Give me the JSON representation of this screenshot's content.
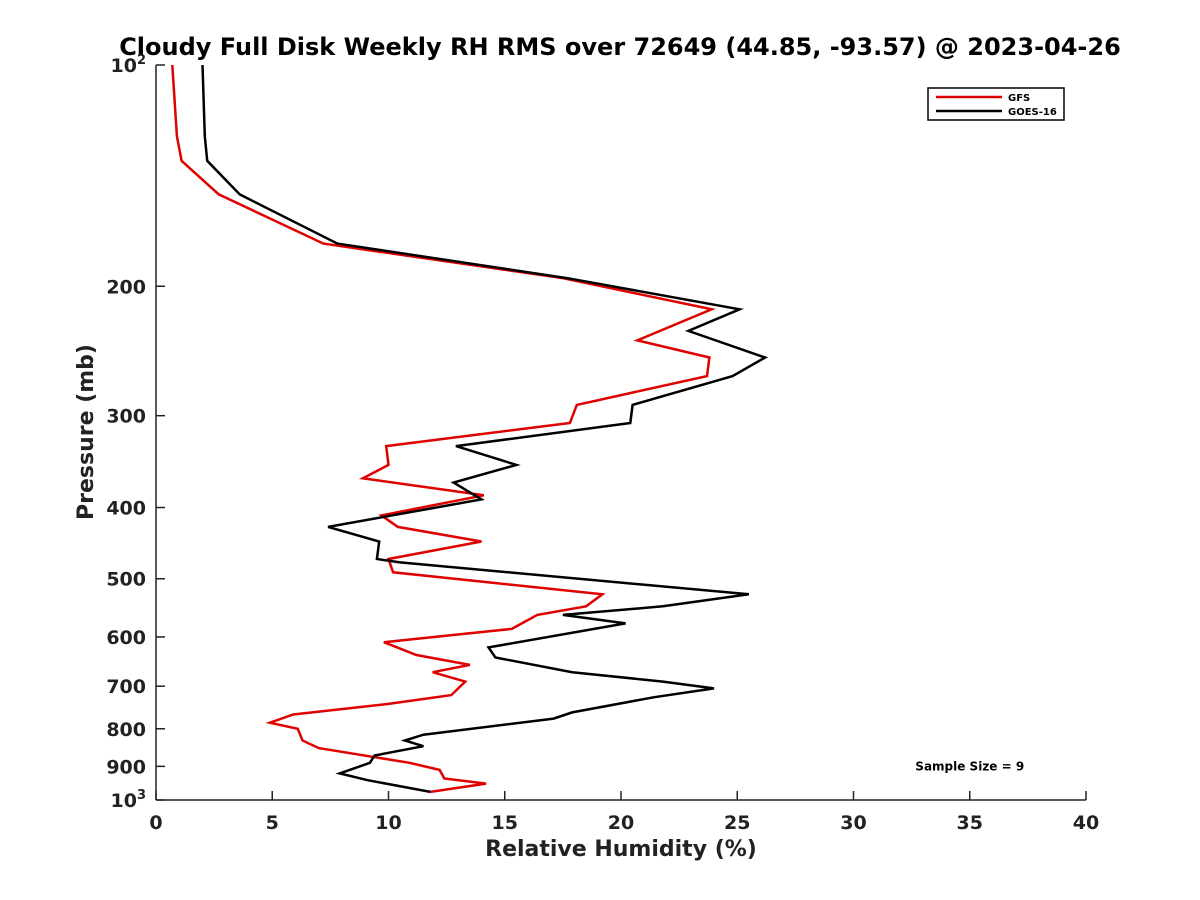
{
  "chart_data": {
    "type": "line",
    "title": "Cloudy Full Disk Weekly RH RMS over 72649 (44.85, -93.57) @ 2023-04-26",
    "xlabel": "Relative Humidity (%)",
    "ylabel": "Pressure (mb)",
    "xlim": [
      0,
      40
    ],
    "ylim": [
      100,
      1000
    ],
    "y_scale": "log",
    "y_inverted": true,
    "grid": false,
    "legend_position": "top-right",
    "x_ticks": [
      {
        "value": 0,
        "label": "0"
      },
      {
        "value": 5,
        "label": "5"
      },
      {
        "value": 10,
        "label": "10"
      },
      {
        "value": 15,
        "label": "15"
      },
      {
        "value": 20,
        "label": "20"
      },
      {
        "value": 25,
        "label": "25"
      },
      {
        "value": 30,
        "label": "30"
      },
      {
        "value": 35,
        "label": "35"
      },
      {
        "value": 40,
        "label": "40"
      }
    ],
    "y_ticks": [
      {
        "value": 100,
        "label": "10",
        "sup": "2"
      },
      {
        "value": 200,
        "label": "200",
        "sup": ""
      },
      {
        "value": 300,
        "label": "300",
        "sup": ""
      },
      {
        "value": 400,
        "label": "400",
        "sup": ""
      },
      {
        "value": 500,
        "label": "500",
        "sup": ""
      },
      {
        "value": 600,
        "label": "600",
        "sup": ""
      },
      {
        "value": 700,
        "label": "700",
        "sup": ""
      },
      {
        "value": 800,
        "label": "800",
        "sup": ""
      },
      {
        "value": 900,
        "label": "900",
        "sup": ""
      },
      {
        "value": 1000,
        "label": "10",
        "sup": "3"
      }
    ],
    "series": [
      {
        "name": "GFS",
        "color": "#e00000",
        "points": [
          [
            0.7,
            100
          ],
          [
            0.9,
            125
          ],
          [
            1.1,
            135
          ],
          [
            2.7,
            150
          ],
          [
            7.2,
            175
          ],
          [
            17.5,
            195
          ],
          [
            23.9,
            215
          ],
          [
            20.7,
            237
          ],
          [
            23.8,
            250
          ],
          [
            23.7,
            265
          ],
          [
            18.1,
            290
          ],
          [
            17.8,
            307
          ],
          [
            9.9,
            330
          ],
          [
            10.0,
            350
          ],
          [
            8.9,
            365
          ],
          [
            14.1,
            385
          ],
          [
            9.7,
            410
          ],
          [
            10.4,
            425
          ],
          [
            14.0,
            445
          ],
          [
            10.0,
            470
          ],
          [
            10.2,
            490
          ],
          [
            19.2,
            525
          ],
          [
            18.5,
            545
          ],
          [
            16.4,
            560
          ],
          [
            15.3,
            585
          ],
          [
            9.8,
            610
          ],
          [
            11.2,
            635
          ],
          [
            13.5,
            655
          ],
          [
            11.9,
            670
          ],
          [
            13.3,
            690
          ],
          [
            12.7,
            720
          ],
          [
            10.0,
            740
          ],
          [
            5.9,
            765
          ],
          [
            4.9,
            785
          ],
          [
            6.1,
            800
          ],
          [
            6.3,
            830
          ],
          [
            7.0,
            850
          ],
          [
            10.9,
            890
          ],
          [
            12.2,
            910
          ],
          [
            12.4,
            935
          ],
          [
            14.2,
            950
          ],
          [
            11.8,
            975
          ]
        ]
      },
      {
        "name": "GOES-16",
        "color": "#000000",
        "points": [
          [
            2.0,
            100
          ],
          [
            2.1,
            125
          ],
          [
            2.2,
            135
          ],
          [
            3.6,
            150
          ],
          [
            7.8,
            175
          ],
          [
            17.7,
            195
          ],
          [
            25.1,
            215
          ],
          [
            22.9,
            230
          ],
          [
            26.2,
            250
          ],
          [
            24.8,
            265
          ],
          [
            20.5,
            290
          ],
          [
            20.4,
            307
          ],
          [
            12.9,
            330
          ],
          [
            15.5,
            350
          ],
          [
            12.8,
            370
          ],
          [
            14.0,
            390
          ],
          [
            7.4,
            425
          ],
          [
            9.6,
            445
          ],
          [
            9.5,
            470
          ],
          [
            10.5,
            475
          ],
          [
            25.5,
            525
          ],
          [
            21.8,
            545
          ],
          [
            17.5,
            560
          ],
          [
            20.2,
            575
          ],
          [
            14.3,
            620
          ],
          [
            14.6,
            640
          ],
          [
            17.9,
            670
          ],
          [
            21.8,
            690
          ],
          [
            24.0,
            705
          ],
          [
            21.4,
            725
          ],
          [
            17.9,
            760
          ],
          [
            17.1,
            775
          ],
          [
            11.5,
            815
          ],
          [
            10.7,
            830
          ],
          [
            11.5,
            845
          ],
          [
            9.4,
            870
          ],
          [
            9.2,
            890
          ],
          [
            7.9,
            920
          ],
          [
            9.1,
            940
          ],
          [
            11.8,
            975
          ]
        ]
      }
    ],
    "annotations": [
      {
        "text": "Sample Size = 9",
        "x": 35,
        "y": 900
      }
    ]
  }
}
